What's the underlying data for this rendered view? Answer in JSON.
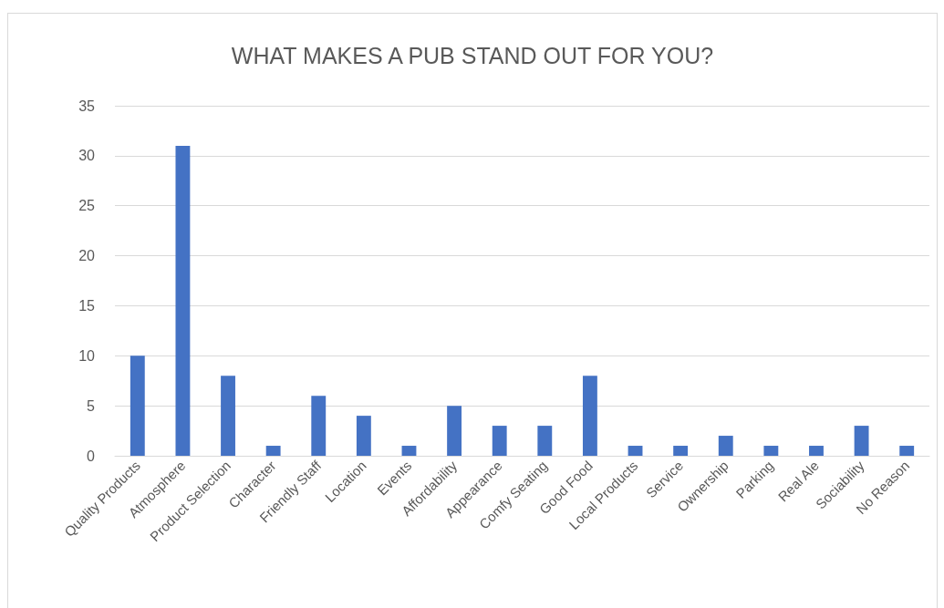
{
  "chart_data": {
    "type": "bar",
    "title": "WHAT MAKES A PUB STAND OUT FOR YOU?",
    "categories": [
      "Quality Products",
      "Atmosphere",
      "Product Selection",
      "Character",
      "Friendly Staff",
      "Location",
      "Events",
      "Affordability",
      "Appearance",
      "Comfy Seating",
      "Good Food",
      "Local Products",
      "Service",
      "Ownership",
      "Parking",
      "Real Ale",
      "Sociability",
      "No Reason"
    ],
    "values": [
      10,
      31,
      8,
      1,
      6,
      4,
      1,
      5,
      3,
      3,
      8,
      1,
      1,
      2,
      1,
      1,
      3,
      1
    ],
    "color": "#4472c4",
    "ylim": [
      0,
      35
    ],
    "yticks": [
      0,
      5,
      10,
      15,
      20,
      25,
      30,
      35
    ],
    "grid": "y"
  }
}
